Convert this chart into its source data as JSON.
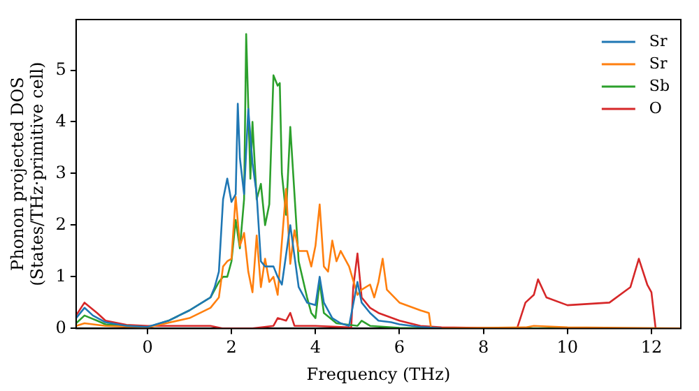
{
  "chart_data": {
    "type": "line",
    "xlabel": "Frequency (THz)",
    "ylabel": "Phonon projected DOS\n(States/THz·primitive cell)",
    "xlim": [
      -1.7,
      12.7
    ],
    "ylim": [
      0,
      5.98
    ],
    "xticks": [
      0,
      2,
      4,
      6,
      8,
      10,
      12
    ],
    "yticks": [
      0,
      1,
      2,
      3,
      4,
      5
    ],
    "grid": false,
    "legend": "top right",
    "marker": "none",
    "line_style": "solid",
    "series": [
      {
        "name": "Sr",
        "color": "#1f77b4",
        "x": [
          -1.7,
          -1.5,
          -1.3,
          -1,
          -0.5,
          0,
          0.5,
          1,
          1.4,
          1.5,
          1.6,
          1.7,
          1.8,
          1.9,
          2.0,
          2.1,
          2.15,
          2.2,
          2.3,
          2.4,
          2.5,
          2.6,
          2.7,
          2.8,
          3.0,
          3.1,
          3.2,
          3.4,
          3.6,
          3.8,
          4.0,
          4.1,
          4.2,
          4.4,
          4.6,
          4.8,
          5.0,
          5.1,
          5.3,
          5.5,
          5.8,
          6,
          6.5,
          7
        ],
        "values": [
          0.2,
          0.4,
          0.25,
          0.12,
          0.05,
          0.03,
          0.15,
          0.35,
          0.55,
          0.6,
          0.8,
          1.1,
          2.5,
          2.9,
          2.45,
          2.6,
          4.35,
          3.3,
          2.6,
          4.25,
          3.2,
          2.6,
          1.3,
          1.2,
          1.2,
          1.0,
          0.85,
          2.0,
          0.8,
          0.5,
          0.45,
          1.0,
          0.5,
          0.2,
          0.1,
          0.05,
          0.9,
          0.5,
          0.3,
          0.15,
          0.12,
          0.08,
          0.03,
          0
        ]
      },
      {
        "name": "Sr",
        "color": "#ff7f0e",
        "x": [
          -1.7,
          -1.5,
          -1,
          0,
          1,
          1.5,
          1.7,
          1.8,
          1.9,
          2.0,
          2.1,
          2.2,
          2.3,
          2.4,
          2.5,
          2.6,
          2.7,
          2.8,
          2.9,
          3.0,
          3.1,
          3.3,
          3.4,
          3.5,
          3.6,
          3.8,
          3.9,
          4.0,
          4.1,
          4.2,
          4.3,
          4.4,
          4.5,
          4.6,
          4.8,
          5.0,
          5.1,
          5.3,
          5.4,
          5.5,
          5.6,
          5.7,
          6.0,
          6.5,
          6.7,
          6.75,
          7,
          9,
          9.2,
          10,
          12.7
        ],
        "values": [
          0.05,
          0.1,
          0.05,
          0.02,
          0.2,
          0.4,
          0.6,
          1.2,
          1.3,
          1.35,
          2.55,
          1.6,
          1.85,
          1.1,
          0.7,
          1.8,
          0.8,
          1.35,
          0.9,
          1.0,
          0.65,
          2.7,
          1.25,
          1.9,
          1.5,
          1.5,
          1.2,
          1.6,
          2.4,
          1.2,
          1.1,
          1.7,
          1.3,
          1.5,
          1.2,
          0.65,
          0.75,
          0.85,
          0.6,
          0.9,
          1.35,
          0.75,
          0.5,
          0.35,
          0.3,
          0.02,
          0,
          0.02,
          0.05,
          0.02,
          0
        ]
      },
      {
        "name": "Sb",
        "color": "#2ca02c",
        "x": [
          -1.7,
          -1.5,
          -1.2,
          -1,
          0,
          0.5,
          1,
          1.5,
          1.7,
          1.8,
          1.9,
          2.0,
          2.1,
          2.2,
          2.3,
          2.35,
          2.45,
          2.5,
          2.6,
          2.7,
          2.8,
          2.9,
          3.0,
          3.1,
          3.15,
          3.2,
          3.3,
          3.4,
          3.5,
          3.6,
          3.8,
          3.9,
          4.0,
          4.1,
          4.2,
          4.5,
          5.0,
          5.1,
          5.3,
          6,
          7,
          12.7
        ],
        "values": [
          0.1,
          0.25,
          0.15,
          0.08,
          0.02,
          0.15,
          0.35,
          0.6,
          0.9,
          1.0,
          1.0,
          1.3,
          2.1,
          1.55,
          2.5,
          5.7,
          2.9,
          4.0,
          2.5,
          2.8,
          2.0,
          2.4,
          4.9,
          4.7,
          4.75,
          3.0,
          2.2,
          3.9,
          2.6,
          1.3,
          0.6,
          0.3,
          0.2,
          0.9,
          0.3,
          0.1,
          0.05,
          0.15,
          0.05,
          0.01,
          0,
          0
        ]
      },
      {
        "name": "O",
        "color": "#d62728",
        "x": [
          -1.7,
          -1.5,
          -1.2,
          -1,
          -0.5,
          0,
          1,
          1.5,
          1.8,
          2.5,
          3.0,
          3.1,
          3.3,
          3.4,
          3.5,
          4,
          4.8,
          4.85,
          4.9,
          5.0,
          5.1,
          5.3,
          5.5,
          6,
          6.5,
          7,
          8.8,
          9.0,
          9.2,
          9.3,
          9.5,
          10,
          11,
          11.5,
          11.7,
          11.9,
          12.0,
          12.1,
          12.7
        ],
        "values": [
          0.25,
          0.5,
          0.3,
          0.15,
          0.07,
          0.05,
          0.05,
          0.05,
          0,
          0,
          0.05,
          0.2,
          0.15,
          0.3,
          0.05,
          0.05,
          0.02,
          0,
          0.8,
          1.45,
          0.6,
          0.4,
          0.3,
          0.15,
          0.05,
          0.02,
          0,
          0.5,
          0.65,
          0.95,
          0.6,
          0.45,
          0.5,
          0.8,
          1.35,
          0.85,
          0.7,
          0,
          0
        ]
      }
    ]
  }
}
